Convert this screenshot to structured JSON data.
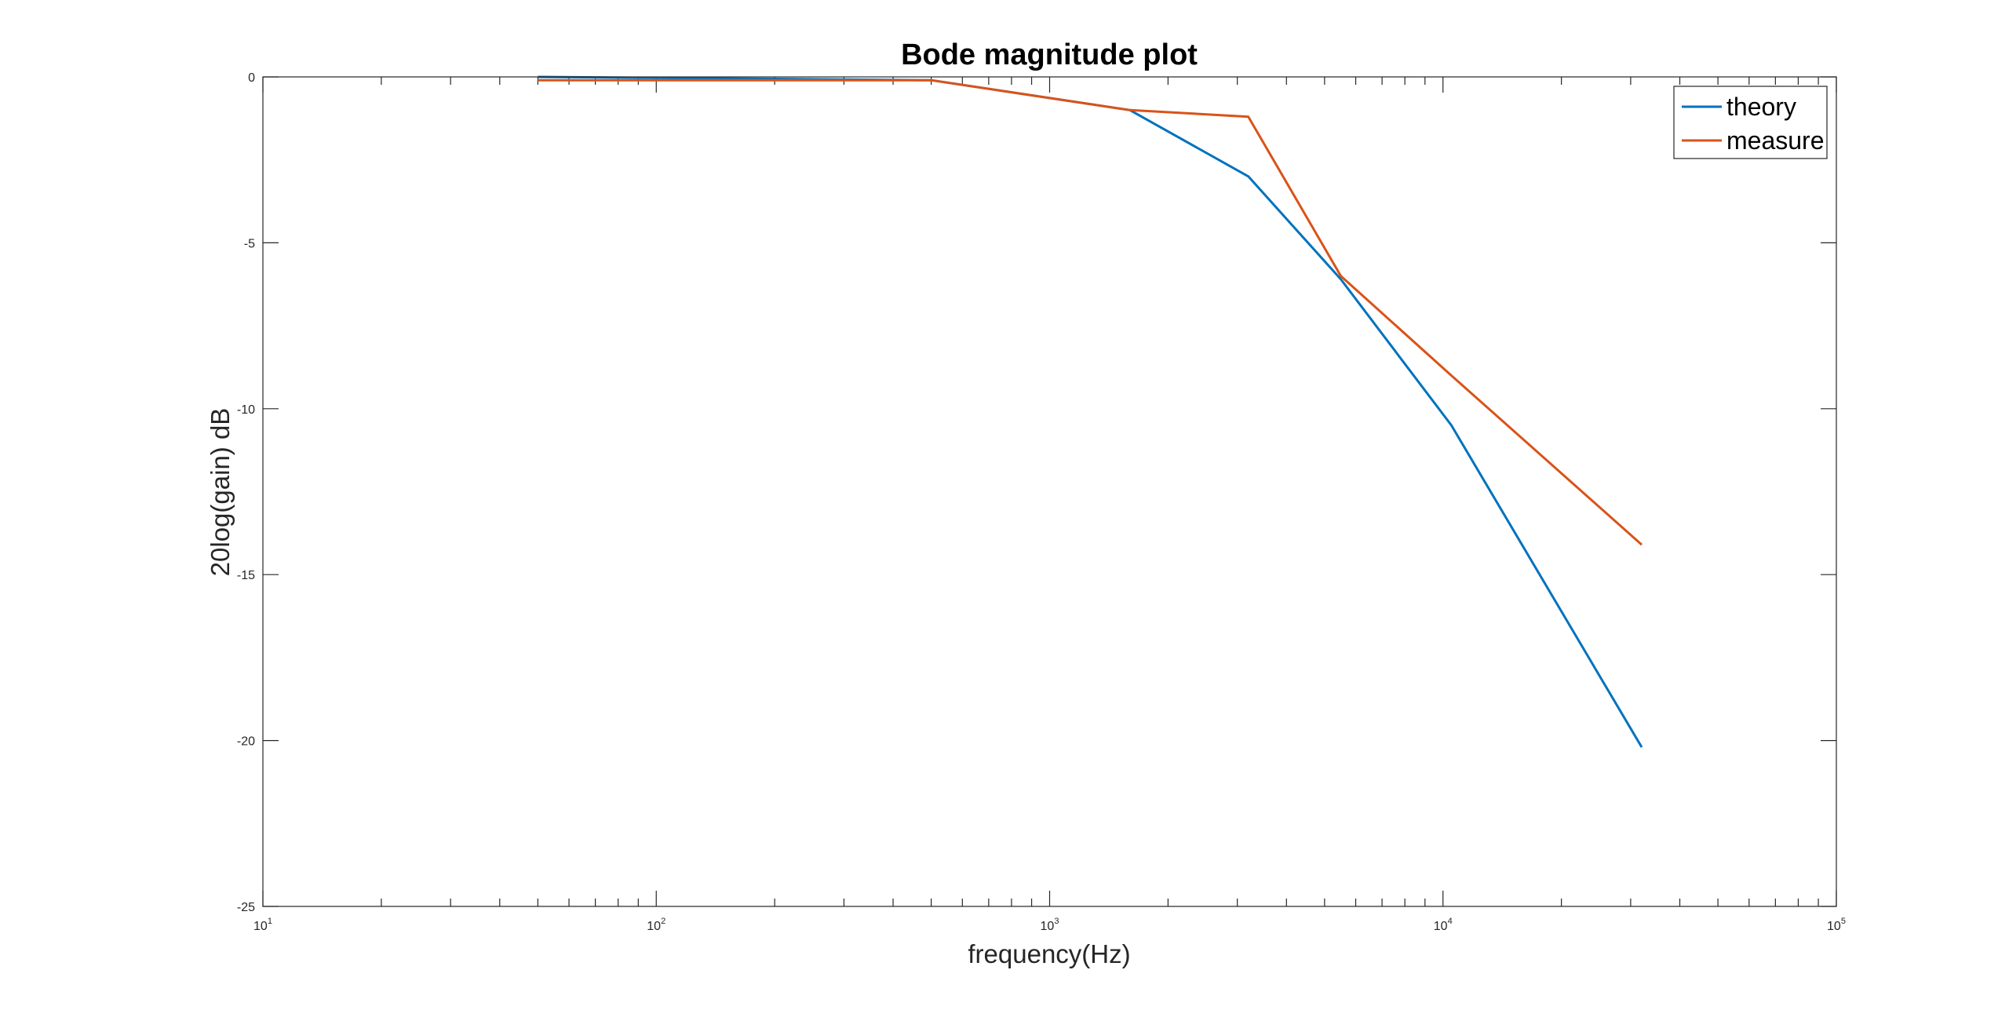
{
  "chart_data": {
    "type": "line",
    "title": "Bode magnitude plot",
    "xlabel": "frequency(Hz)",
    "ylabel": "20log(gain) dB",
    "xscale": "log",
    "xlim": [
      10,
      100000
    ],
    "ylim": [
      -25,
      0
    ],
    "x_tick_labels": [
      {
        "base": "10",
        "exp": "1"
      },
      {
        "base": "10",
        "exp": "2"
      },
      {
        "base": "10",
        "exp": "3"
      },
      {
        "base": "10",
        "exp": "4"
      },
      {
        "base": "10",
        "exp": "5"
      }
    ],
    "y_tick_labels": [
      "0",
      "-5",
      "-10",
      "-15",
      "-20",
      "-25"
    ],
    "legend_position": "top-right",
    "grid": false,
    "x": [
      50,
      500,
      1600,
      3200,
      5500,
      10500,
      32000
    ],
    "series": [
      {
        "name": "theory",
        "color": "#0072BD",
        "values": [
          0.0,
          -0.1,
          -1.0,
          -3.0,
          -6.1,
          -10.5,
          -20.2
        ]
      },
      {
        "name": "measure",
        "color": "#D95319",
        "values": [
          -0.1,
          -0.1,
          -1.0,
          -1.2,
          -6.0,
          -9.0,
          -14.1
        ]
      }
    ]
  }
}
